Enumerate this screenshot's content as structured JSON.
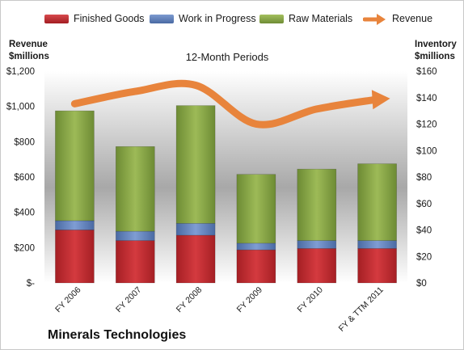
{
  "chart_data": {
    "type": "bar",
    "title": "12-Month Periods",
    "footer": "Minerals Technologies",
    "left_axis": {
      "title_line1": "Revenue",
      "title_line2": "$millions",
      "range": [
        0,
        1200
      ],
      "ticks": [
        "$-",
        "$200",
        "$400",
        "$600",
        "$800",
        "$1,000",
        "$1,200"
      ]
    },
    "right_axis": {
      "title_line1": "Inventory",
      "title_line2": "$millions",
      "range": [
        0,
        160
      ],
      "ticks": [
        "$0",
        "$20",
        "$40",
        "$60",
        "$80",
        "$100",
        "$120",
        "$140",
        "$160"
      ]
    },
    "categories": [
      "FY 2006",
      "FY 2007",
      "FY 2008",
      "FY 2009",
      "FY 2010",
      "FY & TTM 2011"
    ],
    "series": [
      {
        "name": "Finished Goods",
        "type": "stacked-bar",
        "axis": "right",
        "color": "#c0282d",
        "values": [
          40,
          32,
          36,
          25,
          26,
          26
        ]
      },
      {
        "name": "Work in Progress",
        "type": "stacked-bar",
        "axis": "right",
        "color": "#5b7db7",
        "values": [
          7,
          7,
          9,
          5,
          6,
          6
        ]
      },
      {
        "name": "Raw Materials",
        "type": "stacked-bar",
        "axis": "right",
        "color": "#88a646",
        "values": [
          83,
          64,
          89,
          52,
          54,
          58
        ]
      },
      {
        "name": "Revenue",
        "type": "line-arrow",
        "axis": "left",
        "color": "#e8843c",
        "values": [
          1015,
          1085,
          1120,
          900,
          985,
          1040
        ]
      }
    ],
    "legend_position": "top",
    "grid": false,
    "plot_background": "gradient-gray"
  }
}
